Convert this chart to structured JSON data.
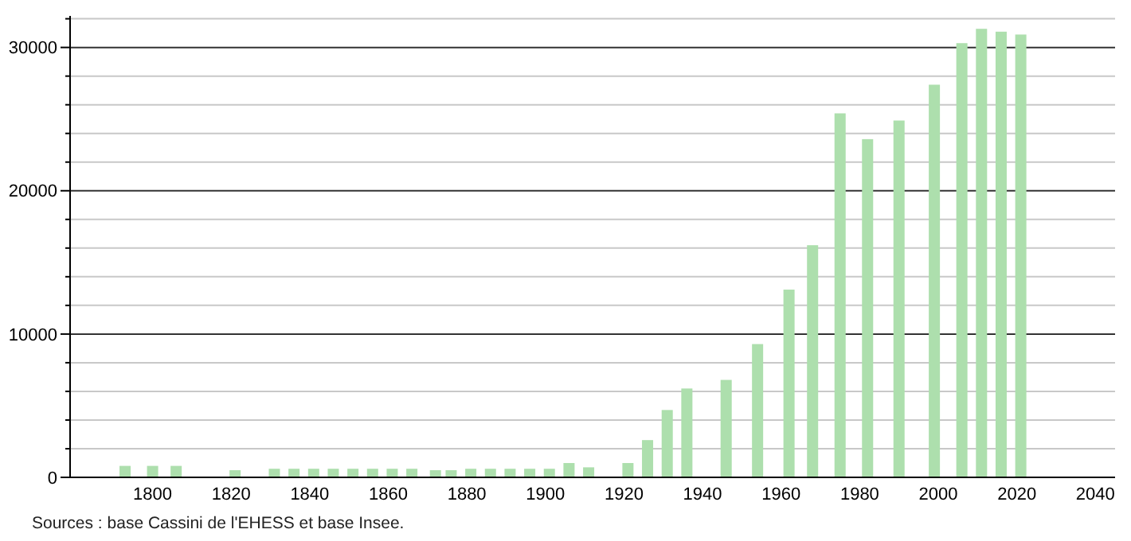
{
  "chart_data": {
    "type": "bar",
    "x": [
      1793,
      1800,
      1806,
      1821,
      1831,
      1836,
      1841,
      1846,
      1851,
      1856,
      1861,
      1866,
      1872,
      1876,
      1881,
      1886,
      1891,
      1896,
      1901,
      1906,
      1911,
      1921,
      1926,
      1931,
      1936,
      1946,
      1954,
      1962,
      1968,
      1975,
      1982,
      1990,
      1999,
      2006,
      2011,
      2016,
      2021
    ],
    "values": [
      800,
      800,
      800,
      500,
      600,
      600,
      600,
      600,
      600,
      600,
      600,
      600,
      500,
      500,
      600,
      600,
      600,
      600,
      600,
      1000,
      700,
      1000,
      2600,
      4700,
      6200,
      6800,
      9300,
      13100,
      16200,
      25400,
      23600,
      24900,
      27400,
      30300,
      31300,
      31100,
      30900
    ],
    "color": "#addfad",
    "xlim": [
      1779,
      2045
    ],
    "xticks": [
      1800,
      1820,
      1840,
      1860,
      1880,
      1900,
      1920,
      1940,
      1960,
      1980,
      2000,
      2020,
      2040
    ],
    "ylim": [
      0,
      32200
    ],
    "yticks": [
      0,
      {
        "value": 2000,
        "label": null
      },
      {
        "value": 4000,
        "label": null
      },
      {
        "value": 6000,
        "label": null
      },
      {
        "value": 8000,
        "label": null
      },
      10000,
      {
        "value": 12000,
        "label": null
      },
      {
        "value": 14000,
        "label": null
      },
      {
        "value": 16000,
        "label": null
      },
      {
        "value": 18000,
        "label": null
      },
      20000,
      {
        "value": 22000,
        "label": null
      },
      {
        "value": 24000,
        "label": null
      },
      {
        "value": 26000,
        "label": null
      },
      {
        "value": 28000,
        "label": null
      },
      30000,
      {
        "value": 32000,
        "label": null
      }
    ],
    "grid": true,
    "annotations": [
      "Sources : base Cassini de l'EHESS et base Insee."
    ]
  }
}
